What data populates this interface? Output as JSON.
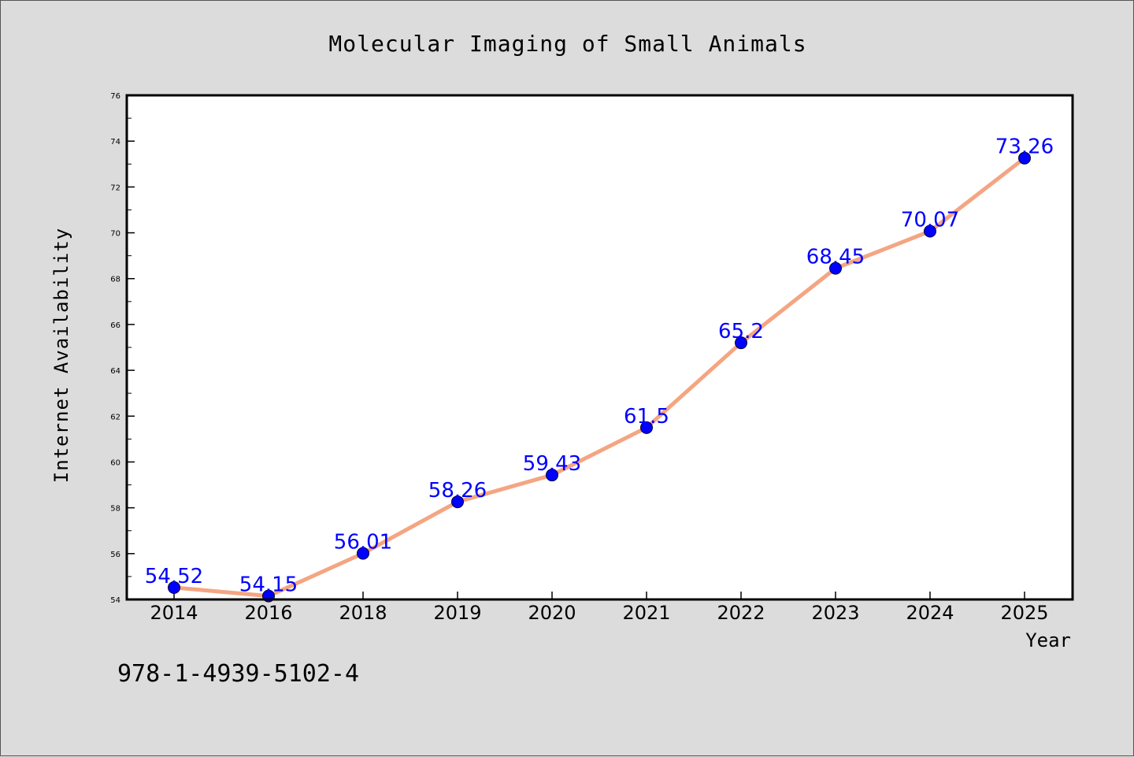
{
  "footer_code": "978-1-4939-5102-4",
  "colors": {
    "background": "#dcdcdc",
    "plot_background": "#ffffff",
    "line": "#f4a582",
    "marker": "#0000ff",
    "data_label": "#0000ff"
  },
  "chart_data": {
    "type": "line",
    "title": "Molecular Imaging of Small Animals",
    "xlabel": "Year",
    "ylabel": "Internet Availability",
    "categories": [
      "2014",
      "2016",
      "2018",
      "2019",
      "2020",
      "2021",
      "2022",
      "2023",
      "2024",
      "2025"
    ],
    "series": [
      {
        "values": [
          54.52,
          54.15,
          56.01,
          58.26,
          59.43,
          61.5,
          65.2,
          68.45,
          70.07,
          73.26
        ],
        "labels": [
          "54.52",
          "54.15",
          "56.01",
          "58.26",
          "59.43",
          "61.5",
          "65.2",
          "68.45",
          "70.07",
          "73.26"
        ]
      }
    ],
    "ylim": [
      54,
      76
    ],
    "yticks": [
      "54",
      "56",
      "58",
      "60",
      "62",
      "64",
      "66",
      "68",
      "70",
      "72",
      "74",
      "76"
    ],
    "grid": false,
    "legend": "none"
  }
}
